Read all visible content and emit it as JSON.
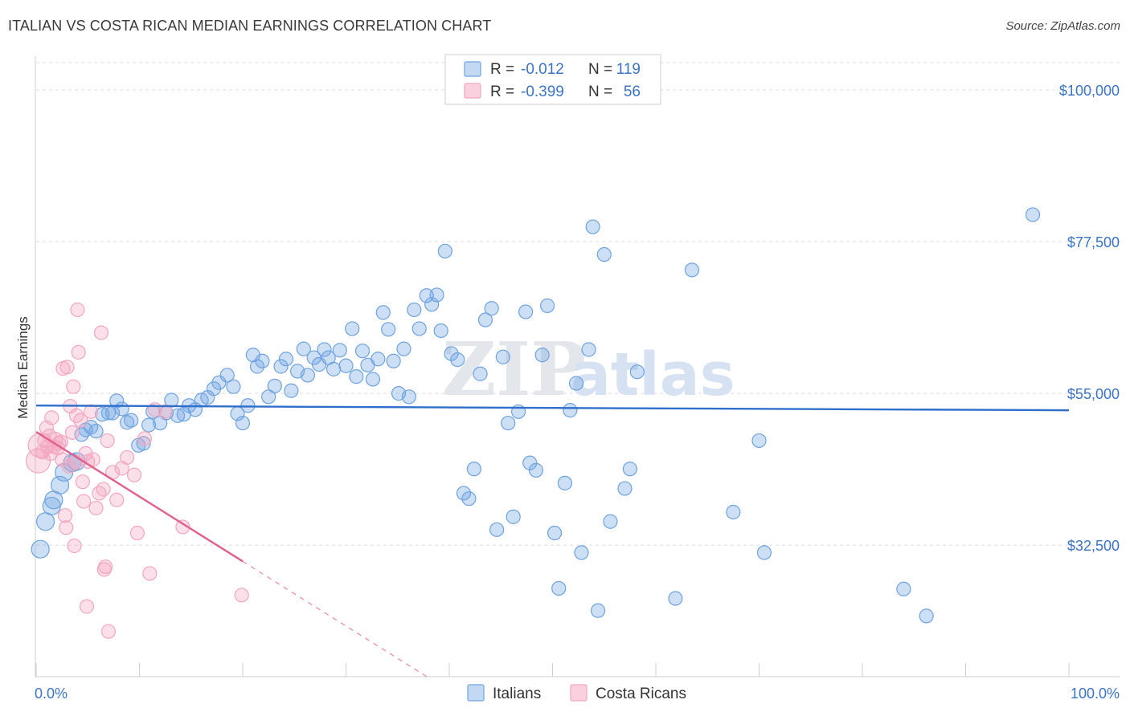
{
  "title": "ITALIAN VS COSTA RICAN MEDIAN EARNINGS CORRELATION CHART",
  "source": "Source: ZipAtlas.com",
  "watermark": {
    "part1": "ZIP",
    "part2": "atlas"
  },
  "colors": {
    "italians": "#6fa3e0",
    "italians_line": "#2f6fcc",
    "costa_ricans": "#f3a6c0",
    "costa_ricans_line": "#e0608e",
    "tick_text": "#3b74c6",
    "grid": "#dcdcdc"
  },
  "legend": {
    "rows": [
      {
        "r_label": "R =",
        "r_value": "-0.012",
        "n_label": "N =",
        "n_value": "119"
      },
      {
        "r_label": "R =",
        "r_value": "-0.399",
        "n_label": "N =",
        "n_value": "56"
      }
    ]
  },
  "chart_data": {
    "type": "scatter",
    "title": "ITALIAN VS COSTA RICAN MEDIAN EARNINGS CORRELATION CHART",
    "xlabel": "",
    "ylabel": "Median Earnings",
    "xlim": [
      0,
      100
    ],
    "ylim": [
      13000,
      105000
    ],
    "x_tick_labels": [
      "0.0%",
      "100.0%"
    ],
    "y_ticks": [
      32500,
      55000,
      77500,
      100000
    ],
    "y_tick_labels": [
      "$32,500",
      "$55,000",
      "$77,500",
      "$100,000"
    ],
    "grid": true,
    "legend_position": "top-center",
    "series": [
      {
        "name": "Italians",
        "r": -0.012,
        "n": 119,
        "trend": {
          "x": [
            0,
            100
          ],
          "y": [
            53200,
            52500
          ]
        },
        "points": [
          [
            0.4,
            31900
          ],
          [
            0.9,
            36000
          ],
          [
            1.5,
            38300
          ],
          [
            1.7,
            39200
          ],
          [
            2.3,
            41400
          ],
          [
            2.7,
            43300
          ],
          [
            3.5,
            44700
          ],
          [
            3.9,
            44900
          ],
          [
            4.4,
            48900
          ],
          [
            4.8,
            49600
          ],
          [
            5.3,
            50000
          ],
          [
            5.8,
            49400
          ],
          [
            6.4,
            51900
          ],
          [
            7.0,
            52100
          ],
          [
            7.4,
            52100
          ],
          [
            7.8,
            53900
          ],
          [
            8.3,
            52700
          ],
          [
            8.8,
            50700
          ],
          [
            9.2,
            51000
          ],
          [
            9.9,
            47300
          ],
          [
            10.4,
            47600
          ],
          [
            10.9,
            50300
          ],
          [
            11.3,
            52300
          ],
          [
            12.0,
            50600
          ],
          [
            12.6,
            52100
          ],
          [
            13.1,
            54000
          ],
          [
            13.7,
            51700
          ],
          [
            14.3,
            51900
          ],
          [
            14.8,
            53200
          ],
          [
            15.4,
            52600
          ],
          [
            16.0,
            54000
          ],
          [
            16.6,
            54400
          ],
          [
            17.2,
            55700
          ],
          [
            17.7,
            56600
          ],
          [
            18.5,
            57700
          ],
          [
            19.1,
            56000
          ],
          [
            19.5,
            52000
          ],
          [
            20.0,
            50600
          ],
          [
            20.5,
            53200
          ],
          [
            21.0,
            60700
          ],
          [
            21.4,
            59000
          ],
          [
            21.9,
            59800
          ],
          [
            22.5,
            54500
          ],
          [
            23.1,
            56100
          ],
          [
            23.7,
            59000
          ],
          [
            24.2,
            60100
          ],
          [
            24.7,
            55400
          ],
          [
            25.3,
            58300
          ],
          [
            25.9,
            61600
          ],
          [
            26.3,
            57700
          ],
          [
            26.9,
            60300
          ],
          [
            27.4,
            59300
          ],
          [
            27.9,
            61500
          ],
          [
            28.3,
            60300
          ],
          [
            28.8,
            58600
          ],
          [
            29.4,
            61400
          ],
          [
            30.0,
            59100
          ],
          [
            30.6,
            64600
          ],
          [
            31.0,
            57500
          ],
          [
            31.6,
            61300
          ],
          [
            32.1,
            59200
          ],
          [
            32.6,
            57100
          ],
          [
            33.1,
            60100
          ],
          [
            33.6,
            67000
          ],
          [
            34.1,
            64500
          ],
          [
            34.6,
            59800
          ],
          [
            35.1,
            55000
          ],
          [
            35.6,
            61600
          ],
          [
            36.1,
            54500
          ],
          [
            36.6,
            67400
          ],
          [
            37.1,
            64600
          ],
          [
            37.8,
            69500
          ],
          [
            38.3,
            68200
          ],
          [
            38.8,
            69600
          ],
          [
            39.2,
            64300
          ],
          [
            39.6,
            76100
          ],
          [
            40.2,
            60900
          ],
          [
            40.8,
            60000
          ],
          [
            41.4,
            40200
          ],
          [
            41.9,
            39400
          ],
          [
            42.4,
            43800
          ],
          [
            43.0,
            57900
          ],
          [
            43.5,
            65900
          ],
          [
            44.1,
            67600
          ],
          [
            44.6,
            34800
          ],
          [
            45.2,
            60400
          ],
          [
            45.7,
            50600
          ],
          [
            46.2,
            36700
          ],
          [
            46.7,
            52300
          ],
          [
            47.4,
            67100
          ],
          [
            47.8,
            44700
          ],
          [
            48.4,
            43600
          ],
          [
            49.0,
            60700
          ],
          [
            49.5,
            68000
          ],
          [
            50.2,
            34300
          ],
          [
            50.6,
            26100
          ],
          [
            51.2,
            41700
          ],
          [
            51.7,
            52500
          ],
          [
            52.3,
            56500
          ],
          [
            52.8,
            31400
          ],
          [
            53.5,
            61500
          ],
          [
            53.9,
            79700
          ],
          [
            54.4,
            22800
          ],
          [
            55.0,
            75600
          ],
          [
            55.6,
            36000
          ],
          [
            57.0,
            40900
          ],
          [
            57.5,
            43800
          ],
          [
            58.2,
            58200
          ],
          [
            61.9,
            24600
          ],
          [
            63.5,
            73300
          ],
          [
            67.5,
            37400
          ],
          [
            70.0,
            48000
          ],
          [
            70.5,
            31400
          ],
          [
            84.0,
            26000
          ],
          [
            86.2,
            22000
          ],
          [
            96.5,
            81500
          ]
        ]
      },
      {
        "name": "Costa Ricans",
        "r": -0.399,
        "n": 56,
        "trend": {
          "x": [
            0,
            20
          ],
          "y": [
            49300,
            30100
          ]
        },
        "trend_dashed": {
          "x": [
            20,
            42
          ],
          "y": [
            30100,
            9000
          ]
        },
        "points": [
          [
            0.2,
            45000
          ],
          [
            0.4,
            47300
          ],
          [
            0.6,
            46300
          ],
          [
            0.8,
            48000
          ],
          [
            1.0,
            49900
          ],
          [
            1.1,
            47100
          ],
          [
            1.3,
            48700
          ],
          [
            1.4,
            46100
          ],
          [
            1.5,
            51400
          ],
          [
            1.7,
            47100
          ],
          [
            1.9,
            48200
          ],
          [
            2.1,
            46900
          ],
          [
            2.2,
            47600
          ],
          [
            2.4,
            47800
          ],
          [
            2.5,
            45200
          ],
          [
            2.6,
            58700
          ],
          [
            2.8,
            36900
          ],
          [
            2.9,
            35100
          ],
          [
            3.0,
            58900
          ],
          [
            3.2,
            44200
          ],
          [
            3.3,
            53100
          ],
          [
            3.5,
            49200
          ],
          [
            3.6,
            56000
          ],
          [
            3.7,
            32400
          ],
          [
            3.8,
            44800
          ],
          [
            3.9,
            51700
          ],
          [
            4.0,
            67400
          ],
          [
            4.1,
            61100
          ],
          [
            4.3,
            51000
          ],
          [
            4.5,
            41900
          ],
          [
            4.6,
            39000
          ],
          [
            4.8,
            46100
          ],
          [
            4.9,
            23400
          ],
          [
            5.0,
            44900
          ],
          [
            5.3,
            52300
          ],
          [
            5.5,
            45200
          ],
          [
            5.8,
            38000
          ],
          [
            6.1,
            40200
          ],
          [
            6.3,
            64000
          ],
          [
            6.5,
            40800
          ],
          [
            6.6,
            28900
          ],
          [
            6.7,
            29300
          ],
          [
            6.9,
            48000
          ],
          [
            7.0,
            19700
          ],
          [
            7.4,
            43300
          ],
          [
            7.8,
            39200
          ],
          [
            8.3,
            43900
          ],
          [
            8.8,
            45500
          ],
          [
            9.5,
            42900
          ],
          [
            9.8,
            34300
          ],
          [
            10.5,
            48300
          ],
          [
            11.0,
            28300
          ],
          [
            11.5,
            52600
          ],
          [
            12.5,
            52300
          ],
          [
            14.2,
            35200
          ],
          [
            19.9,
            25100
          ]
        ]
      }
    ]
  },
  "bottom_legend": [
    {
      "label": "Italians"
    },
    {
      "label": "Costa Ricans"
    }
  ]
}
